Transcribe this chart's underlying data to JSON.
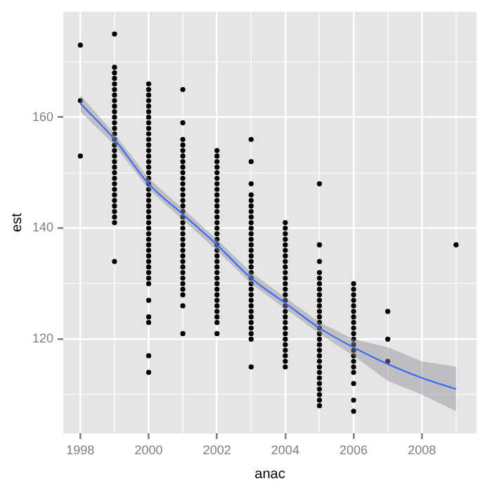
{
  "chart_data": {
    "type": "scatter",
    "xlabel": "anac",
    "ylabel": "est",
    "xlim": [
      1997.5,
      2009.6
    ],
    "ylim": [
      103,
      179
    ],
    "xticks": [
      1998,
      {
        "value": 1999,
        "label": null
      },
      2000,
      {
        "value": 2001,
        "label": null
      },
      2002,
      {
        "value": 2003,
        "label": null
      },
      2004,
      {
        "value": 2005,
        "label": null
      },
      2006,
      {
        "value": 2007,
        "label": null
      },
      2008,
      {
        "value": 2009,
        "label": null
      }
    ],
    "yticks": [
      {
        "value": 110,
        "label": null
      },
      120,
      {
        "value": 130,
        "label": null
      },
      140,
      {
        "value": 150,
        "label": null
      },
      160,
      {
        "value": 170,
        "label": null
      }
    ],
    "grid": true,
    "legend": false,
    "marker": "circle",
    "series": [
      {
        "color": "#000000",
        "x": [
          1998,
          1998,
          1998
        ],
        "values": [
          173,
          163,
          153
        ]
      },
      {
        "color": "#000000",
        "x": [
          1999,
          1999,
          1999,
          1999,
          1999,
          1999,
          1999,
          1999,
          1999,
          1999,
          1999,
          1999,
          1999,
          1999,
          1999,
          1999,
          1999,
          1999,
          1999,
          1999,
          1999,
          1999,
          1999,
          1999,
          1999,
          1999,
          1999,
          1999,
          1999,
          1999,
          1999
        ],
        "values": [
          175,
          169,
          168,
          167,
          166,
          165,
          164,
          163,
          162,
          161,
          160,
          159,
          158,
          157,
          156,
          155,
          154,
          153,
          152,
          151,
          150,
          149,
          148,
          147,
          146,
          145,
          144,
          143,
          142,
          141,
          134
        ]
      },
      {
        "color": "#000000",
        "x": [
          2000,
          2000,
          2000,
          2000,
          2000,
          2000,
          2000,
          2000,
          2000,
          2000,
          2000,
          2000,
          2000,
          2000,
          2000,
          2000,
          2000,
          2000,
          2000,
          2000,
          2000,
          2000,
          2000,
          2000,
          2000,
          2000,
          2000,
          2000,
          2000,
          2000,
          2000,
          2000,
          2000,
          2000,
          2000,
          2000,
          2000,
          2000,
          2000,
          2000,
          2000,
          2000
        ],
        "values": [
          166,
          165,
          164,
          163,
          162,
          161,
          160,
          159,
          158,
          157,
          156,
          155,
          154,
          153,
          152,
          151,
          150,
          149,
          148,
          147,
          146,
          145,
          144,
          143,
          142,
          141,
          140,
          139,
          138,
          137,
          136,
          135,
          134,
          133,
          132,
          131,
          130,
          127,
          124,
          123,
          117,
          114
        ]
      },
      {
        "color": "#000000",
        "x": [
          2001,
          2001,
          2001,
          2001,
          2001,
          2001,
          2001,
          2001,
          2001,
          2001,
          2001,
          2001,
          2001,
          2001,
          2001,
          2001,
          2001,
          2001,
          2001,
          2001,
          2001,
          2001,
          2001,
          2001,
          2001,
          2001,
          2001,
          2001,
          2001,
          2001,
          2001,
          2001,
          2001
        ],
        "values": [
          165,
          159,
          156,
          155,
          154,
          153,
          152,
          151,
          150,
          149,
          148,
          147,
          146,
          145,
          144,
          143,
          142,
          141,
          140,
          139,
          138,
          137,
          136,
          135,
          134,
          133,
          132,
          131,
          130,
          129,
          128,
          126,
          121
        ]
      },
      {
        "color": "#000000",
        "x": [
          2002,
          2002,
          2002,
          2002,
          2002,
          2002,
          2002,
          2002,
          2002,
          2002,
          2002,
          2002,
          2002,
          2002,
          2002,
          2002,
          2002,
          2002,
          2002,
          2002,
          2002,
          2002,
          2002,
          2002,
          2002,
          2002,
          2002,
          2002,
          2002,
          2002,
          2002,
          2002,
          2002
        ],
        "values": [
          154,
          153,
          152,
          151,
          150,
          149,
          148,
          147,
          146,
          145,
          144,
          143,
          142,
          141,
          140,
          139,
          138,
          137,
          136,
          135,
          134,
          133,
          132,
          131,
          130,
          129,
          128,
          127,
          126,
          125,
          124,
          123,
          121
        ]
      },
      {
        "color": "#000000",
        "x": [
          2003,
          2003,
          2003,
          2003,
          2003,
          2003,
          2003,
          2003,
          2003,
          2003,
          2003,
          2003,
          2003,
          2003,
          2003,
          2003,
          2003,
          2003,
          2003,
          2003,
          2003,
          2003,
          2003,
          2003,
          2003,
          2003,
          2003,
          2003,
          2003,
          2003,
          2003
        ],
        "values": [
          156,
          152,
          148,
          146,
          145,
          144,
          143,
          142,
          141,
          140,
          139,
          138,
          137,
          136,
          135,
          134,
          133,
          132,
          131,
          130,
          129,
          128,
          127,
          126,
          125,
          124,
          123,
          122,
          121,
          120,
          115
        ]
      },
      {
        "color": "#000000",
        "x": [
          2004,
          2004,
          2004,
          2004,
          2004,
          2004,
          2004,
          2004,
          2004,
          2004,
          2004,
          2004,
          2004,
          2004,
          2004,
          2004,
          2004,
          2004,
          2004,
          2004,
          2004,
          2004,
          2004,
          2004,
          2004,
          2004,
          2004
        ],
        "values": [
          141,
          140,
          139,
          138,
          137,
          136,
          135,
          134,
          133,
          132,
          131,
          130,
          129,
          128,
          127,
          126,
          125,
          124,
          123,
          122,
          121,
          120,
          119,
          118,
          117,
          116,
          115
        ]
      },
      {
        "color": "#000000",
        "x": [
          2005,
          2005,
          2005,
          2005,
          2005,
          2005,
          2005,
          2005,
          2005,
          2005,
          2005,
          2005,
          2005,
          2005,
          2005,
          2005,
          2005,
          2005,
          2005,
          2005,
          2005,
          2005,
          2005,
          2005,
          2005,
          2005,
          2005,
          2005
        ],
        "values": [
          148,
          137,
          134,
          132,
          131,
          130,
          129,
          128,
          127,
          126,
          125,
          124,
          123,
          122,
          121,
          120,
          119,
          118,
          117,
          116,
          115,
          114,
          113,
          112,
          111,
          110,
          109,
          108
        ]
      },
      {
        "color": "#000000",
        "x": [
          2006,
          2006,
          2006,
          2006,
          2006,
          2006,
          2006,
          2006,
          2006,
          2006,
          2006,
          2006,
          2006,
          2006,
          2006,
          2006,
          2006,
          2006,
          2006,
          2006
        ],
        "values": [
          130,
          129,
          128,
          127,
          126,
          125,
          124,
          123,
          122,
          121,
          120,
          119,
          118,
          117,
          116,
          115,
          114,
          112,
          109,
          107
        ]
      },
      {
        "color": "#000000",
        "x": [
          2007,
          2007,
          2007
        ],
        "values": [
          125,
          120,
          116
        ]
      },
      {
        "color": "#000000",
        "x": [
          2009
        ],
        "values": [
          137
        ]
      },
      {
        "type": "line",
        "marker": "none",
        "color": "#3366ff",
        "x": [
          1998,
          1999,
          2000,
          2001,
          2002,
          2003,
          2004,
          2005,
          2006,
          2007,
          2008,
          2009
        ],
        "values": [
          162.5,
          156,
          148,
          142.5,
          137,
          131,
          126.5,
          122,
          118.5,
          115.5,
          113,
          111
        ],
        "lower": [
          161,
          155,
          147,
          141.5,
          136,
          130,
          125.5,
          121,
          117,
          112.5,
          110,
          107
        ],
        "upper": [
          164,
          157,
          149,
          143.5,
          138,
          132,
          127.5,
          123,
          120,
          118.5,
          116,
          115
        ]
      }
    ]
  }
}
